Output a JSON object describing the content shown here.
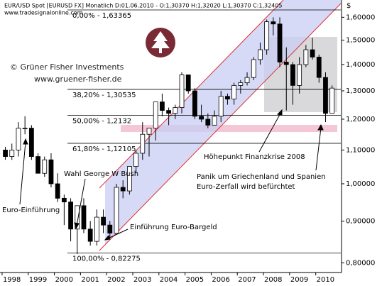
{
  "chart_data": {
    "type": "candlestick",
    "title": "EUR/USD Spot [EURUSD FX] Monatlich D:01.06.2010 - O:1,30370 H:1,32020 L:1,30370 C:1,32405",
    "subtitle": "www.tradesignalonline.com",
    "y_axis_label": "$",
    "log_scale": true,
    "grid": false,
    "color": "#000000",
    "x": [
      1998.125,
      1998.375,
      1998.625,
      1998.875,
      1999.125,
      1999.375,
      1999.625,
      1999.875,
      2000.125,
      2000.375,
      2000.625,
      2000.875,
      2001.125,
      2001.375,
      2001.625,
      2001.875,
      2002.125,
      2002.375,
      2002.625,
      2002.875,
      2003.125,
      2003.375,
      2003.625,
      2003.875,
      2004.125,
      2004.375,
      2004.625,
      2004.875,
      2005.125,
      2005.375,
      2005.625,
      2005.875,
      2006.125,
      2006.375,
      2006.625,
      2006.875,
      2007.125,
      2007.375,
      2007.625,
      2007.875,
      2008.125,
      2008.375,
      2008.625,
      2008.875,
      2009.125,
      2009.375,
      2009.625,
      2009.875,
      2010.125,
      2010.375,
      2010.625
    ],
    "open": [
      1.1,
      1.08,
      1.1,
      1.17,
      1.17,
      1.08,
      1.03,
      1.07,
      1.0,
      0.96,
      0.95,
      0.88,
      0.94,
      0.88,
      0.85,
      0.91,
      0.89,
      0.87,
      0.99,
      0.98,
      1.05,
      1.09,
      1.15,
      1.17,
      1.26,
      1.23,
      1.22,
      1.24,
      1.36,
      1.3,
      1.21,
      1.2,
      1.18,
      1.21,
      1.28,
      1.27,
      1.32,
      1.33,
      1.35,
      1.42,
      1.46,
      1.58,
      1.57,
      1.41,
      1.4,
      1.32,
      1.4,
      1.46,
      1.43,
      1.35,
      1.22
    ],
    "high": [
      1.11,
      1.12,
      1.19,
      1.21,
      1.18,
      1.09,
      1.08,
      1.09,
      1.03,
      0.97,
      0.96,
      0.94,
      0.96,
      0.9,
      0.93,
      0.93,
      0.9,
      1.0,
      1.01,
      1.05,
      1.1,
      1.19,
      1.17,
      1.26,
      1.29,
      1.24,
      1.25,
      1.37,
      1.36,
      1.31,
      1.25,
      1.22,
      1.23,
      1.3,
      1.29,
      1.33,
      1.34,
      1.37,
      1.43,
      1.49,
      1.59,
      1.6,
      1.6,
      1.47,
      1.41,
      1.43,
      1.48,
      1.51,
      1.44,
      1.37,
      1.32
    ],
    "low": [
      1.07,
      1.07,
      1.08,
      1.15,
      1.07,
      1.03,
      1.02,
      0.99,
      0.95,
      0.89,
      0.85,
      0.82,
      0.87,
      0.84,
      0.84,
      0.87,
      0.86,
      0.87,
      0.96,
      0.97,
      1.03,
      1.07,
      1.08,
      1.13,
      1.21,
      1.18,
      1.2,
      1.22,
      1.29,
      1.2,
      1.19,
      1.17,
      1.18,
      1.19,
      1.25,
      1.25,
      1.29,
      1.32,
      1.34,
      1.4,
      1.44,
      1.52,
      1.39,
      1.23,
      1.25,
      1.29,
      1.39,
      1.42,
      1.33,
      1.19,
      1.22
    ],
    "close": [
      1.08,
      1.1,
      1.17,
      1.17,
      1.08,
      1.03,
      1.07,
      1.0,
      0.96,
      0.95,
      0.88,
      0.94,
      0.88,
      0.85,
      0.91,
      0.89,
      0.87,
      0.99,
      0.98,
      1.05,
      1.09,
      1.15,
      1.17,
      1.26,
      1.23,
      1.22,
      1.24,
      1.36,
      1.3,
      1.21,
      1.2,
      1.18,
      1.21,
      1.28,
      1.27,
      1.32,
      1.33,
      1.35,
      1.42,
      1.46,
      1.58,
      1.57,
      1.41,
      1.4,
      1.32,
      1.4,
      1.46,
      1.43,
      1.35,
      1.22,
      1.31
    ],
    "xlim": [
      1997.92,
      2010.96
    ],
    "xticks": [
      1998,
      1999,
      2000,
      2001,
      2002,
      2003,
      2004,
      2005,
      2006,
      2007,
      2008,
      2009,
      2010
    ],
    "ylim": [
      0.78,
      1.68
    ],
    "yticks": [
      {
        "value": 0.8,
        "label": "0,80000"
      },
      {
        "value": 0.9,
        "label": "0,90000"
      },
      {
        "value": 1.0,
        "label": "1,00000"
      },
      {
        "value": 1.1,
        "label": "1,10000"
      },
      {
        "value": 1.2,
        "label": "1,20000"
      },
      {
        "value": 1.3,
        "label": "1,30000"
      },
      {
        "value": 1.4,
        "label": "1,40000"
      },
      {
        "value": 1.5,
        "label": "1,50000"
      },
      {
        "value": 1.6,
        "label": "1,60000"
      }
    ],
    "levels": [
      {
        "value": 1.63365,
        "label": "0,00% - 1,63365"
      },
      {
        "value": 1.30535,
        "label": "38,20% - 1,30535"
      },
      {
        "value": 1.2132,
        "label": "50,00% - 1,2132"
      },
      {
        "value": 1.12105,
        "label": "61,80% - 1,12105"
      },
      {
        "value": 0.82275,
        "label": "100,00% - 0,82275"
      }
    ],
    "annotations": [
      "© Grüner Fisher Investments",
      "www.gruener-fisher.de",
      "Höhepunkt Finanzkrise 2008",
      "Panik um Griechenland und Spanien",
      "Euro-Zerfall wird befürchtet",
      "Wahl George W Bush",
      "Euro-Einführung",
      "Einführung Euro-Bargeld"
    ]
  }
}
